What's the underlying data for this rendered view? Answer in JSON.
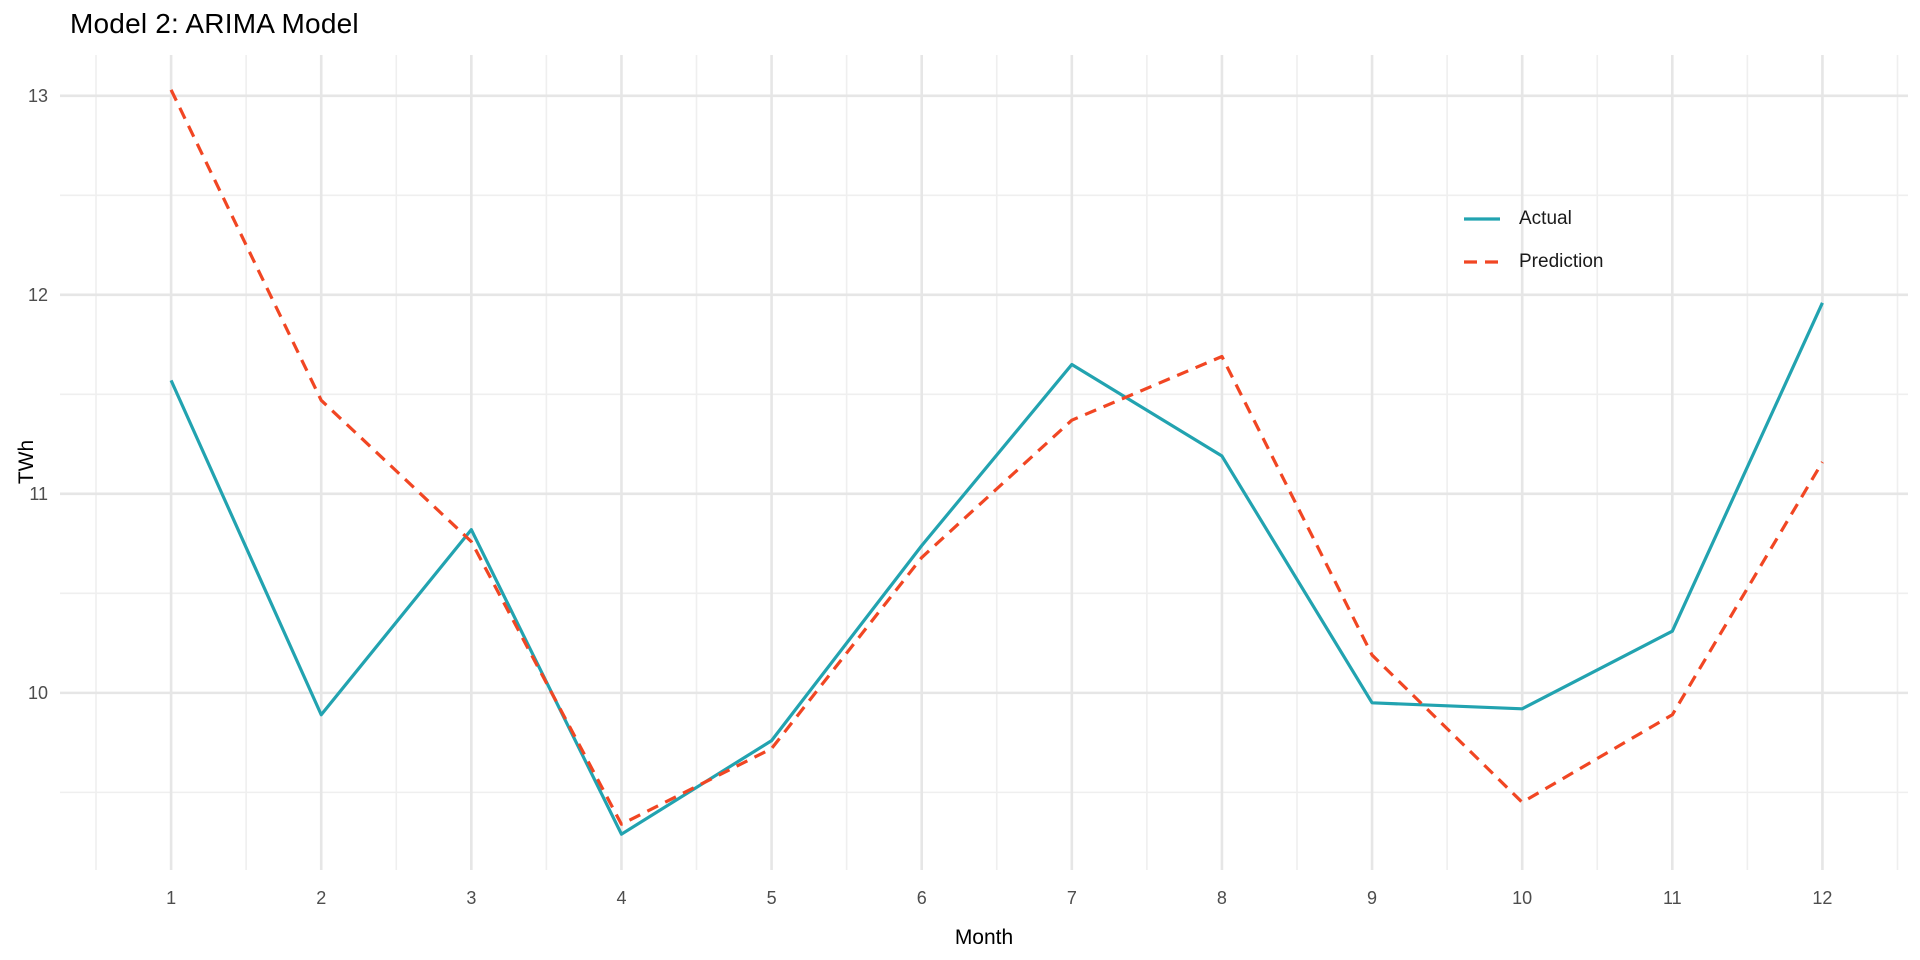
{
  "page": {
    "background": "#ffffff"
  },
  "chart_data": {
    "type": "line",
    "title": "Model 2: ARIMA Model",
    "xlabel": "Month",
    "ylabel": "TWh",
    "x": [
      1,
      2,
      3,
      4,
      5,
      6,
      7,
      8,
      9,
      10,
      11,
      12
    ],
    "series": [
      {
        "name": "Actual",
        "color": "#22a3b0",
        "dash": "solid",
        "values": [
          11.57,
          9.89,
          10.82,
          9.29,
          9.76,
          10.74,
          11.65,
          11.19,
          9.95,
          9.92,
          10.31,
          11.96
        ]
      },
      {
        "name": "Prediction",
        "color": "#f14623",
        "dash": "dashed",
        "values": [
          13.03,
          11.47,
          10.76,
          9.34,
          9.72,
          10.68,
          11.37,
          11.69,
          10.19,
          9.45,
          9.89,
          11.16
        ]
      }
    ],
    "xlim": [
      0.26,
      12.57
    ],
    "ylim": [
      9.11,
      13.205
    ],
    "x_ticks": [
      1,
      2,
      3,
      4,
      5,
      6,
      7,
      8,
      9,
      10,
      11,
      12
    ],
    "y_ticks": [
      10,
      11,
      12,
      13
    ],
    "x_minor_gridlines": [
      0.5,
      1.5,
      2.5,
      3.5,
      4.5,
      5.5,
      6.5,
      7.5,
      8.5,
      9.5,
      10.5,
      11.5,
      12.5
    ],
    "y_minor_gridlines": [
      9.5,
      10.5,
      11.5,
      12.5
    ],
    "grid": "major+minor",
    "grid_major_color": "#e6e6e6",
    "grid_minor_color": "#efefef",
    "legend_position": "inside top-right",
    "line_width": 3.2
  }
}
